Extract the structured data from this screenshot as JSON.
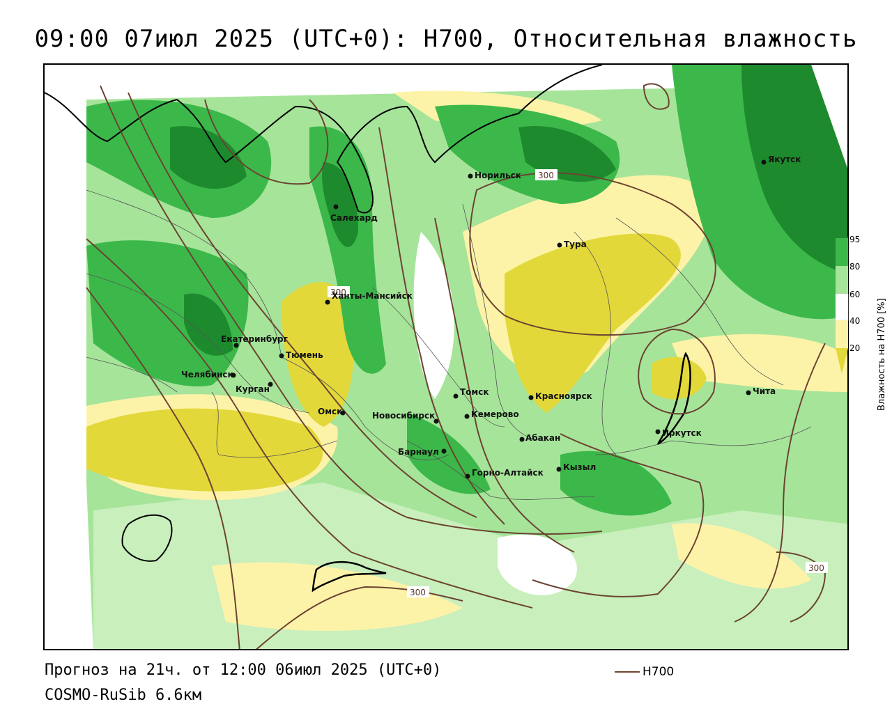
{
  "title": "09:00 07июл 2025 (UTC+0): H700, Относительная влажность",
  "forecast_text": "Прогноз на 21ч. от 12:00 06июл 2025 (UTC+0)",
  "model_text": "COSMO-RuSib 6.6км",
  "series_legend": {
    "label": "H700",
    "color": "#6b4432"
  },
  "colorbar": {
    "title": "Влажность на H700 [%]",
    "ticks": [
      "95",
      "80",
      "60",
      "40",
      "20"
    ],
    "colors": {
      "very_humid": "#1e8a2e",
      "humid": "#3cb84a",
      "moist": "#a6e49a",
      "neutral": "#ffffff",
      "dry": "#fdf3a8",
      "very_dry": "#e3d83a"
    }
  },
  "contour_labels": [
    "300",
    "300",
    "300",
    "300"
  ],
  "cities": [
    {
      "name": "Норильск"
    },
    {
      "name": "Салехард"
    },
    {
      "name": "Тура"
    },
    {
      "name": "Якутск"
    },
    {
      "name": "Ханты-Мансийск"
    },
    {
      "name": "Екатеринбург"
    },
    {
      "name": "Тюмень"
    },
    {
      "name": "Челябинск"
    },
    {
      "name": "Курган"
    },
    {
      "name": "Омск"
    },
    {
      "name": "Новосибирск"
    },
    {
      "name": "Томск"
    },
    {
      "name": "Кемерово"
    },
    {
      "name": "Красноярск"
    },
    {
      "name": "Барнаул"
    },
    {
      "name": "Абакан"
    },
    {
      "name": "Горно-Алтайск"
    },
    {
      "name": "Кызыл"
    },
    {
      "name": "Иркутск"
    },
    {
      "name": "Чита"
    }
  ]
}
